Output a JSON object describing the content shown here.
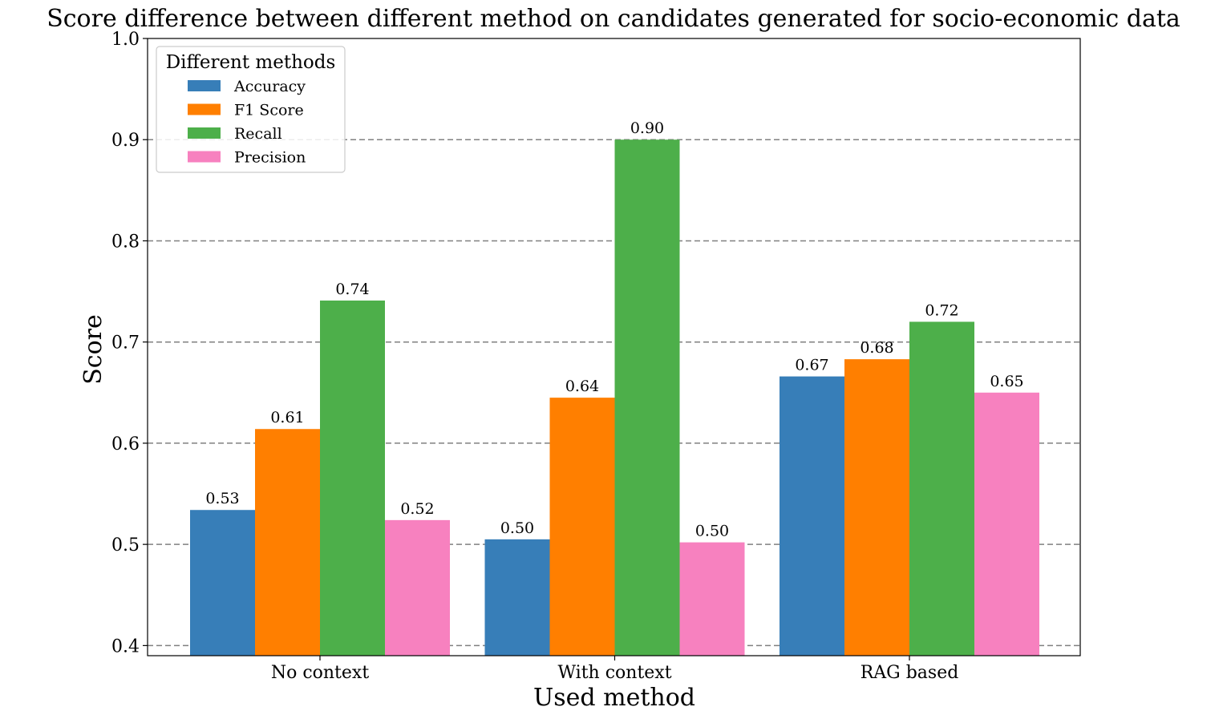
{
  "chart_data": {
    "type": "bar",
    "title": "Score difference between different method on candidates generated for socio-economic data",
    "xlabel": "Used method",
    "ylabel": "Score",
    "categories": [
      "No context",
      "With context",
      "RAG based"
    ],
    "ylim": [
      0.39,
      1.0
    ],
    "yticks": [
      0.4,
      0.5,
      0.6,
      0.7,
      0.8,
      0.9,
      1.0
    ],
    "ytick_labels": [
      "0.4",
      "0.5",
      "0.6",
      "0.7",
      "0.8",
      "0.9",
      "1.0"
    ],
    "grid": "horizontal dashed",
    "legend": {
      "title": "Different methods",
      "placement": "top-left"
    },
    "series": [
      {
        "name": "Accuracy",
        "color": "#377eb8",
        "values": [
          0.534,
          0.505,
          0.666
        ],
        "labels": [
          "0.53",
          "0.50",
          "0.67"
        ]
      },
      {
        "name": "F1 Score",
        "color": "#ff7f00",
        "values": [
          0.614,
          0.645,
          0.683
        ],
        "labels": [
          "0.61",
          "0.64",
          "0.68"
        ]
      },
      {
        "name": "Recall",
        "color": "#4daf4a",
        "values": [
          0.741,
          0.9,
          0.72
        ],
        "labels": [
          "0.74",
          "0.90",
          "0.72"
        ]
      },
      {
        "name": "Precision",
        "color": "#f781bf",
        "values": [
          0.524,
          0.502,
          0.65
        ],
        "labels": [
          "0.52",
          "0.50",
          "0.65"
        ]
      }
    ]
  }
}
